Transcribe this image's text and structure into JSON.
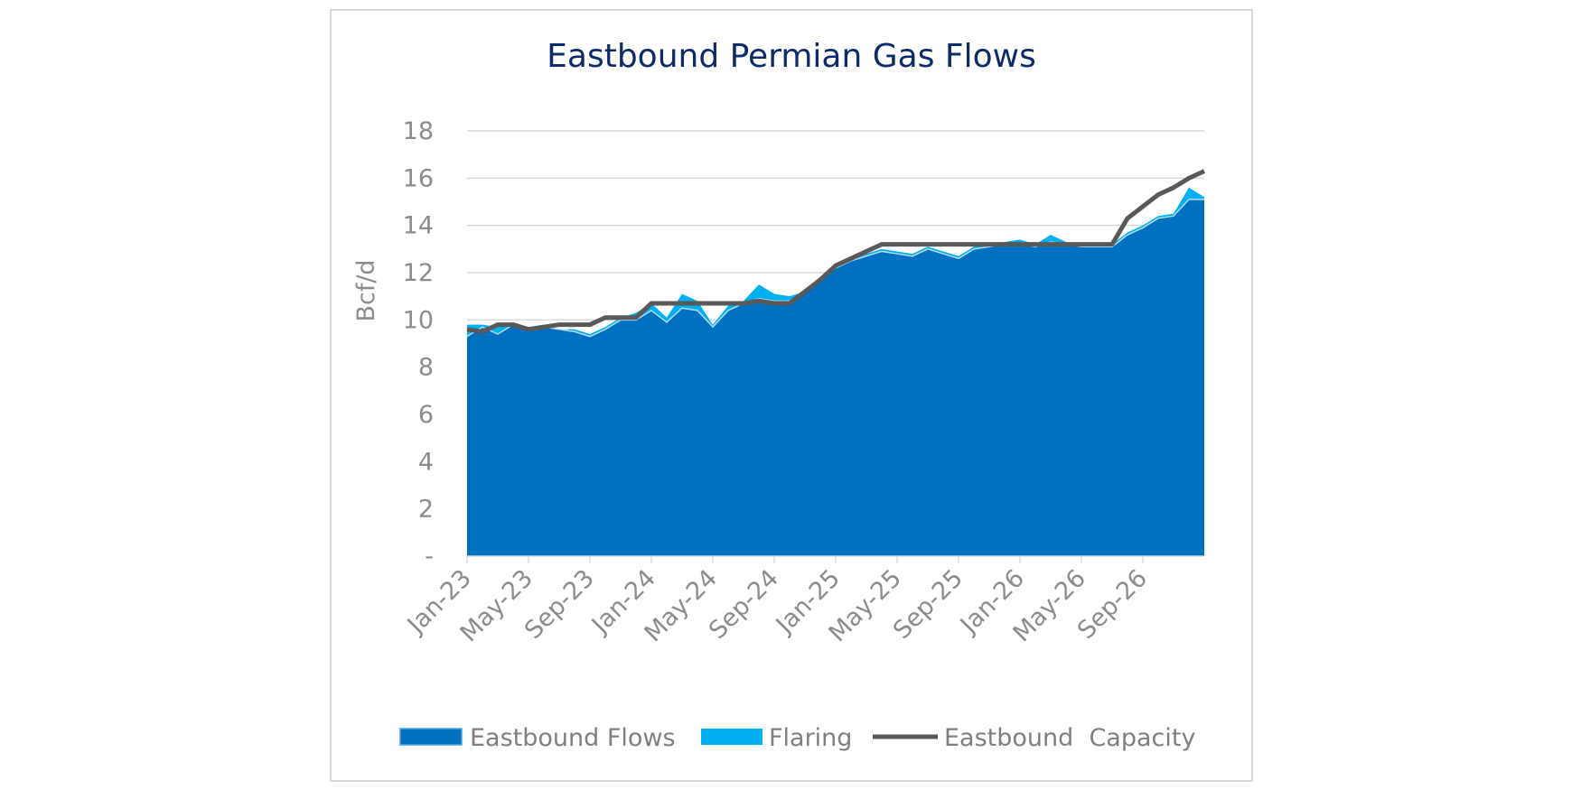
{
  "chart_data": {
    "type": "area",
    "title": "Eastbound Permian Gas Flows",
    "ylabel": "Bcf/d",
    "xlabel": "",
    "ylim": [
      0,
      18
    ],
    "yticks": [
      0,
      2,
      4,
      6,
      8,
      10,
      12,
      14,
      16,
      18
    ],
    "ytick_labels": [
      "-",
      "2",
      "4",
      "6",
      "8",
      "10",
      "12",
      "14",
      "16",
      "18"
    ],
    "xtick_labels": [
      "Jan-23",
      "May-23",
      "Sep-23",
      "Jan-24",
      "May-24",
      "Sep-24",
      "Jan-25",
      "May-25",
      "Sep-25",
      "Jan-26",
      "May-26",
      "Sep-26"
    ],
    "x": [
      "Jan-23",
      "Feb-23",
      "Mar-23",
      "Apr-23",
      "May-23",
      "Jun-23",
      "Jul-23",
      "Aug-23",
      "Sep-23",
      "Oct-23",
      "Nov-23",
      "Dec-23",
      "Jan-24",
      "Feb-24",
      "Mar-24",
      "Apr-24",
      "May-24",
      "Jun-24",
      "Jul-24",
      "Aug-24",
      "Sep-24",
      "Oct-24",
      "Nov-24",
      "Dec-24",
      "Jan-25",
      "Feb-25",
      "Mar-25",
      "Apr-25",
      "May-25",
      "Jun-25",
      "Jul-25",
      "Aug-25",
      "Sep-25",
      "Oct-25",
      "Nov-25",
      "Dec-25",
      "Jan-26",
      "Feb-26",
      "Mar-26",
      "Apr-26",
      "May-26",
      "Jun-26",
      "Jul-26",
      "Aug-26",
      "Sep-26",
      "Oct-26",
      "Nov-26",
      "Dec-26",
      "Jan-27"
    ],
    "grid": true,
    "legend_position": "bottom",
    "series": [
      {
        "name": "Eastbound Flows",
        "color": "#0070c0",
        "values": [
          9.3,
          9.7,
          9.4,
          9.8,
          9.6,
          9.7,
          9.6,
          9.5,
          9.3,
          9.6,
          10.0,
          10.0,
          10.4,
          9.9,
          10.5,
          10.4,
          9.7,
          10.4,
          10.7,
          10.9,
          10.8,
          10.8,
          11.2,
          11.7,
          12.2,
          12.5,
          12.7,
          12.9,
          12.8,
          12.7,
          13.0,
          12.8,
          12.6,
          13.0,
          13.1,
          13.2,
          13.2,
          13.1,
          13.3,
          13.2,
          13.1,
          13.1,
          13.1,
          13.6,
          13.9,
          14.3,
          14.4,
          15.1,
          15.1
        ]
      },
      {
        "name": "Flaring",
        "color": "#00b0f0",
        "values": [
          0.5,
          0.1,
          0.3,
          0.0,
          0.1,
          0.1,
          0.0,
          0.1,
          0.1,
          0.1,
          0.1,
          0.3,
          0.3,
          0.2,
          0.6,
          0.4,
          0.1,
          0.2,
          0.1,
          0.6,
          0.3,
          0.2,
          0.0,
          0.0,
          0.0,
          0.1,
          0.1,
          0.1,
          0.1,
          0.1,
          0.1,
          0.1,
          0.1,
          0.1,
          0.1,
          0.1,
          0.2,
          0.1,
          0.3,
          0.1,
          0.1,
          0.1,
          0.1,
          0.1,
          0.1,
          0.1,
          0.1,
          0.5,
          0.1
        ]
      },
      {
        "name": "Eastbound  Capacity",
        "color": "#595959",
        "values": [
          9.6,
          9.5,
          9.8,
          9.8,
          9.6,
          9.7,
          9.8,
          9.8,
          9.8,
          10.1,
          10.1,
          10.1,
          10.7,
          10.7,
          10.7,
          10.7,
          10.7,
          10.7,
          10.7,
          10.8,
          10.7,
          10.7,
          11.2,
          11.7,
          12.3,
          12.6,
          12.9,
          13.2,
          13.2,
          13.2,
          13.2,
          13.2,
          13.2,
          13.2,
          13.2,
          13.2,
          13.2,
          13.2,
          13.2,
          13.2,
          13.2,
          13.2,
          13.2,
          14.3,
          14.8,
          15.3,
          15.6,
          16.0,
          16.3
        ]
      }
    ]
  }
}
